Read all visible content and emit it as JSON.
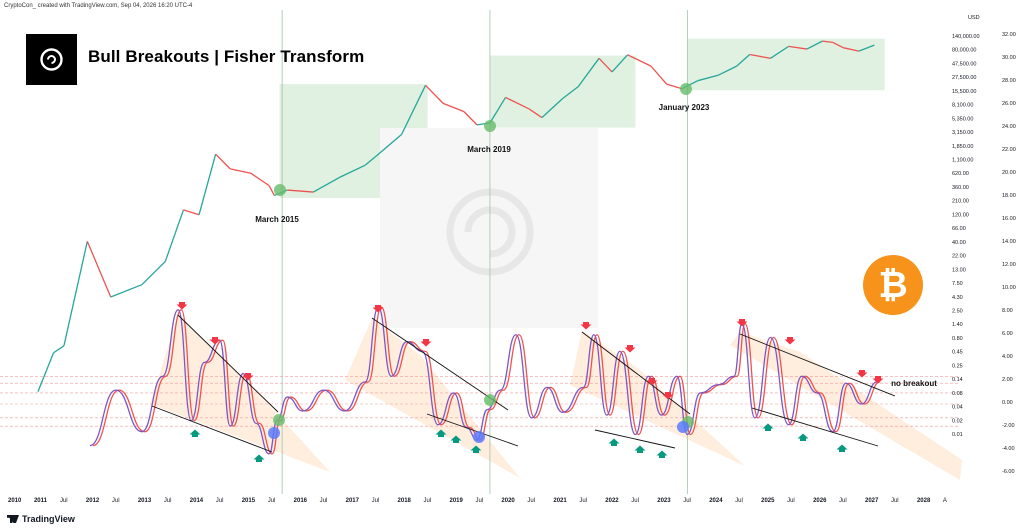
{
  "header": {
    "credit": "CryptoCon_ created with TradingView.com, Sep 04, 2026 16:20 UTC-4",
    "title": "Bull Breakouts | Fisher Transform",
    "brand": "TradingView",
    "currency": "USD"
  },
  "icons": {
    "logo": "cryptocon-logo-icon",
    "bitcoin": "bitcoin-icon",
    "btc_glyph": "₿"
  },
  "colors": {
    "price_up": "#26a69a",
    "price_down": "#ef5350",
    "fisher": "#7e57c2",
    "fisher_signal": "#ef5350",
    "arrow_down": "#f23645",
    "arrow_up": "#089981",
    "breakout_circle": "#66bb6a",
    "bottom_circle": "#5b7bff",
    "zone": "#c8e6c9",
    "wedge": "#ffe0c2"
  },
  "chart_data": {
    "type": "line",
    "title": "Bull Breakouts | Fisher Transform",
    "price_axis_labels": [
      "140,000.00",
      "80,000.00",
      "47,500.00",
      "27,500.00",
      "15,500.00",
      "8,100.00",
      "5,350.00",
      "3,150.00",
      "1,850.00",
      "1,100.00",
      "620.00",
      "360.00",
      "210.00",
      "120.00",
      "66.00",
      "40.00",
      "22.00",
      "13.00",
      "7.50",
      "4.30",
      "2.50",
      "1.40",
      "0.80",
      "0.45",
      "0.25",
      "0.14",
      "0.08",
      "0.04",
      "0.02",
      "0.01"
    ],
    "fisher_axis_labels": [
      "32.00",
      "30.00",
      "28.00",
      "26.00",
      "24.00",
      "22.00",
      "20.00",
      "18.00",
      "16.00",
      "14.00",
      "12.00",
      "10.00",
      "8.00",
      "6.00",
      "4.00",
      "2.00",
      "0.00",
      "-2.00",
      "-4.00",
      "-6.00"
    ],
    "x_labels": [
      "2010",
      "2011",
      "Jul",
      "2012",
      "Jul",
      "2013",
      "Jul",
      "2014",
      "Jul",
      "2015",
      "Jul",
      "2016",
      "Jul",
      "2017",
      "Jul",
      "2018",
      "Jul",
      "2019",
      "Jul",
      "2020",
      "Jul",
      "2021",
      "Jul",
      "2022",
      "Jul",
      "2023",
      "Jul",
      "2024",
      "Jul",
      "2025",
      "Jul",
      "2026",
      "Jul",
      "2027",
      "Jul",
      "2028",
      "A"
    ],
    "price_series": {
      "name": "BTCUSD",
      "x": [
        2010.5,
        2010.8,
        2011.0,
        2011.45,
        2011.9,
        2012.5,
        2012.95,
        2013.3,
        2013.6,
        2013.92,
        2014.2,
        2014.6,
        2014.95,
        2015.05,
        2015.3,
        2015.8,
        2016.3,
        2016.8,
        2017.0,
        2017.5,
        2017.96,
        2018.3,
        2018.7,
        2018.95,
        2019.2,
        2019.5,
        2019.95,
        2020.2,
        2020.6,
        2020.9,
        2021.3,
        2021.55,
        2021.85,
        2022.3,
        2022.6,
        2022.9,
        2023.2,
        2023.6,
        2023.95,
        2024.2,
        2024.6,
        2024.95,
        2025.3,
        2025.6,
        2025.8,
        2026.0,
        2026.3,
        2026.6
      ],
      "y": [
        0.06,
        0.3,
        0.4,
        30,
        3,
        5,
        13,
        110,
        90,
        1100,
        600,
        500,
        300,
        200,
        250,
        230,
        420,
        700,
        1000,
        2500,
        19000,
        9000,
        6400,
        3700,
        4000,
        11500,
        7200,
        5000,
        11000,
        18000,
        58000,
        33000,
        67000,
        42000,
        20000,
        16500,
        23000,
        29000,
        42000,
        68000,
        58000,
        95000,
        85000,
        118000,
        112000,
        90000,
        78000,
        100000
      ]
    },
    "fisher_transform": {
      "name": "Fisher Transform",
      "range": [
        -6,
        9
      ],
      "dashed_levels": [
        2,
        1.5,
        0.8,
        0,
        -1,
        -1.6
      ],
      "x": [
        2011.5,
        2012.0,
        2012.5,
        2012.9,
        2013.2,
        2013.45,
        2013.7,
        2014.0,
        2014.2,
        2014.45,
        2014.7,
        2014.95,
        2015.1,
        2015.3,
        2015.6,
        2016.0,
        2016.4,
        2016.8,
        2017.05,
        2017.3,
        2017.6,
        2017.9,
        2018.2,
        2018.5,
        2018.75,
        2018.95,
        2019.15,
        2019.4,
        2019.7,
        2020.0,
        2020.3,
        2020.6,
        2021.0,
        2021.2,
        2021.45,
        2021.7,
        2022.0,
        2022.25,
        2022.5,
        2022.8,
        2023.0,
        2023.25,
        2023.6,
        2023.9,
        2024.05,
        2024.3,
        2024.6,
        2024.95,
        2025.2,
        2025.5,
        2025.8,
        2026.05,
        2026.35,
        2026.65
      ],
      "y": [
        -3,
        1,
        -2,
        2,
        6.8,
        -1.2,
        3,
        4.6,
        -1.6,
        2.2,
        -1.4,
        -3.6,
        -1.2,
        0.5,
        -0.5,
        1,
        -0.5,
        1.6,
        7,
        2,
        4.5,
        3.8,
        -1.5,
        0.8,
        -1.7,
        -2.6,
        -0.4,
        1,
        5,
        -1,
        1.2,
        -0.6,
        1.2,
        5,
        -0.8,
        3.8,
        -2.2,
        2,
        -0.8,
        2,
        -2.2,
        0.8,
        1.4,
        2,
        5.8,
        -1,
        4.8,
        -1.5,
        2,
        0.8,
        -2,
        1.5,
        0,
        1.6
      ]
    },
    "annotations": [
      {
        "text": "March 2015",
        "x": 2015.2
      },
      {
        "text": "March 2019",
        "x": 2019.2
      },
      {
        "text": "January 2023",
        "x": 2023.0
      },
      {
        "text": "no breakout",
        "x": 2026.9
      }
    ],
    "breakout_zones": [
      {
        "x1": 2015.15,
        "x2": 2018.0,
        "y_low": 180,
        "y_high": 20000
      },
      {
        "x1": 2019.2,
        "x2": 2022.0,
        "y_low": 3300,
        "y_high": 65000
      },
      {
        "x1": 2023.0,
        "x2": 2026.8,
        "y_low": 15500,
        "y_high": 130000
      }
    ],
    "vertical_lines_x": [
      2015.2,
      2019.2,
      2023.0
    ],
    "legend": "none",
    "grid": false
  }
}
